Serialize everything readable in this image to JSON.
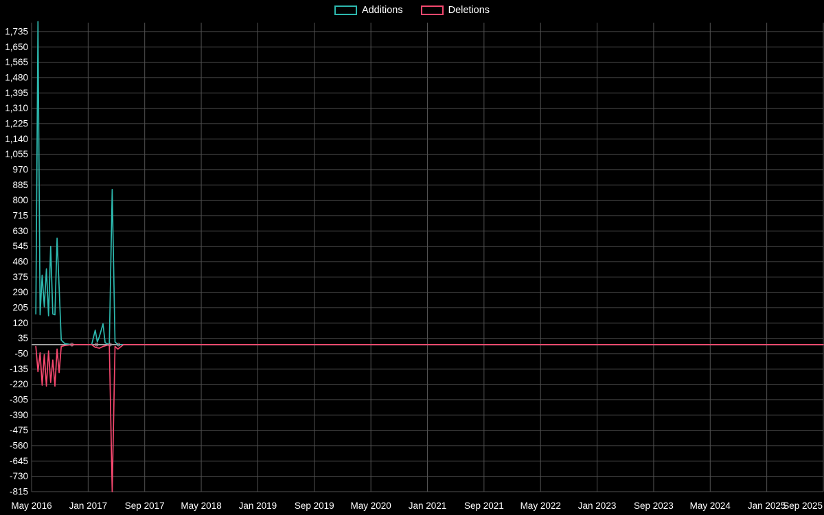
{
  "legend": {
    "items": [
      {
        "label": "Additions",
        "color": "#2db8ae"
      },
      {
        "label": "Deletions",
        "color": "#f4486e"
      }
    ]
  },
  "chart_data": {
    "type": "line",
    "title": "",
    "xlabel": "",
    "ylabel": "",
    "background_color": "#000000",
    "grid": true,
    "grid_color": "#515151",
    "zero_line_color": "#c2c2c2",
    "text_color": "#ffffff",
    "legend_position": "top-center",
    "x_labels": [
      "May 2016",
      "Jan 2017",
      "Sep 2017",
      "May 2018",
      "Jan 2019",
      "Sep 2019",
      "May 2020",
      "Jan 2021",
      "Sep 2021",
      "May 2022",
      "Jan 2023",
      "Sep 2023",
      "May 2024",
      "Jan 2025",
      "Sep 2025"
    ],
    "x_range_months": 112,
    "months_per_label": 8,
    "y_ticks": [
      1735,
      1650,
      1565,
      1480,
      1395,
      1310,
      1225,
      1140,
      1055,
      970,
      885,
      800,
      715,
      630,
      545,
      460,
      375,
      290,
      205,
      120,
      35,
      -50,
      -135,
      -220,
      -305,
      -390,
      -475,
      -560,
      -645,
      -730,
      -815
    ],
    "ylim": [
      -815,
      1790
    ],
    "series": [
      {
        "name": "Additions",
        "color": "#2db8ae",
        "points": [
          [
            0.6,
            170
          ],
          [
            0.9,
            1790
          ],
          [
            1.2,
            165
          ],
          [
            1.5,
            385
          ],
          [
            1.8,
            210
          ],
          [
            2.1,
            420
          ],
          [
            2.4,
            160
          ],
          [
            2.7,
            545
          ],
          [
            3.0,
            170
          ],
          [
            3.3,
            165
          ],
          [
            3.6,
            590
          ],
          [
            3.9,
            320
          ],
          [
            4.2,
            25
          ],
          [
            4.7,
            5
          ],
          [
            5.7,
            0
          ],
          [
            7.0,
            0
          ],
          [
            8.5,
            0
          ],
          [
            9.0,
            80
          ],
          [
            9.3,
            15
          ],
          [
            9.6,
            45
          ],
          [
            10.1,
            115
          ],
          [
            10.4,
            10
          ],
          [
            11.0,
            0
          ],
          [
            11.4,
            860
          ],
          [
            11.8,
            15
          ],
          [
            12.2,
            0
          ],
          [
            13.0,
            0
          ],
          [
            14.0,
            0
          ],
          [
            20,
            0
          ],
          [
            112,
            0
          ]
        ]
      },
      {
        "name": "Deletions",
        "color": "#f4486e",
        "points": [
          [
            0.6,
            -10
          ],
          [
            0.9,
            -150
          ],
          [
            1.2,
            -45
          ],
          [
            1.5,
            -225
          ],
          [
            1.8,
            -55
          ],
          [
            2.1,
            -230
          ],
          [
            2.4,
            -35
          ],
          [
            2.7,
            -210
          ],
          [
            3.0,
            -85
          ],
          [
            3.3,
            -230
          ],
          [
            3.6,
            -25
          ],
          [
            3.9,
            -155
          ],
          [
            4.2,
            -10
          ],
          [
            4.7,
            -5
          ],
          [
            5.7,
            0
          ],
          [
            7.0,
            0
          ],
          [
            8.5,
            0
          ],
          [
            9.0,
            -15
          ],
          [
            9.6,
            -20
          ],
          [
            10.1,
            -10
          ],
          [
            11.0,
            0
          ],
          [
            11.4,
            -815
          ],
          [
            11.8,
            -10
          ],
          [
            12.2,
            -25
          ],
          [
            13.0,
            0
          ],
          [
            14.0,
            0
          ],
          [
            20,
            0
          ],
          [
            112,
            0
          ]
        ]
      }
    ],
    "zero_markers": [
      {
        "m": 5.7,
        "v": 0
      },
      {
        "m": 9.2,
        "v": 0
      },
      {
        "m": 11.1,
        "v": 0
      },
      {
        "m": 12.3,
        "v": 0
      }
    ]
  }
}
